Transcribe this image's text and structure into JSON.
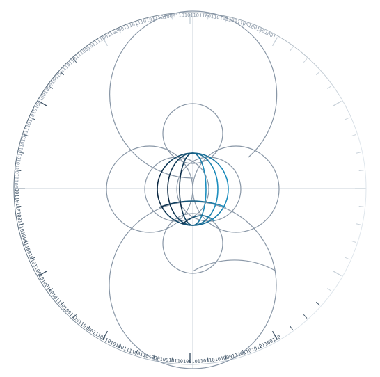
{
  "colors": {
    "background": "#ffffff",
    "light": "#c9d2da",
    "mid": "#8896a6",
    "dark": "#2d3e52",
    "globe_dark": "#0e2a44",
    "globe_accent": "#1c8fc0",
    "ring_light": "#dfe6ec",
    "ring_dark": "#3f5366"
  },
  "icons": {
    "globe": "globe-icon",
    "orbit_rings": "orbit-rings-icon"
  },
  "ring_text": {
    "upper_arc": "00111001010101101001110110101001001000100100110110111001011110011000011101110101110100011010110110011010110011001001001001",
    "lower_arc": "101101101001110100011001010110010100100101110100111011010011101101010011110011010001001011010010110110101000111011010101100110"
  }
}
